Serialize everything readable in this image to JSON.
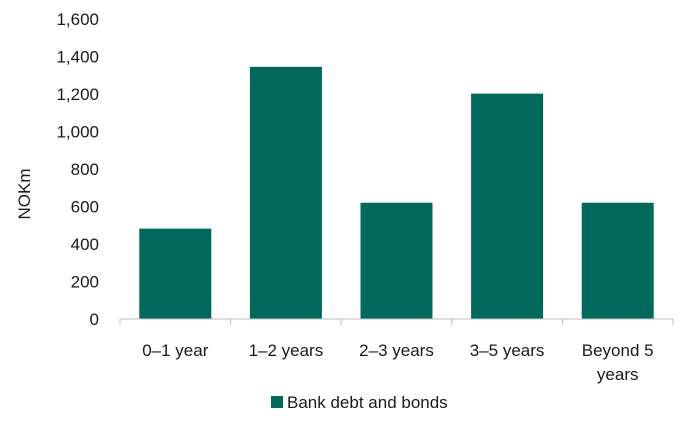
{
  "chart_data": {
    "type": "bar",
    "categories": [
      [
        "0–1 year"
      ],
      [
        "1–2 years"
      ],
      [
        "2–3 years"
      ],
      [
        "3–5 years"
      ],
      [
        "Beyond 5",
        "years"
      ]
    ],
    "series": [
      {
        "name": "Bank debt and bonds",
        "values": [
          482,
          1345,
          620,
          1202,
          620
        ],
        "color": "#00695c"
      }
    ],
    "ylabel": "NOKm",
    "ylim": [
      0,
      1600
    ],
    "yticks": [
      0,
      200,
      400,
      600,
      800,
      1000,
      1200,
      1400,
      1600
    ],
    "ytick_labels": [
      "0",
      "200",
      "400",
      "600",
      "800",
      "1,000",
      "1,200",
      "1,400",
      "1,600"
    ],
    "grid": false,
    "legend_position": "bottom"
  }
}
